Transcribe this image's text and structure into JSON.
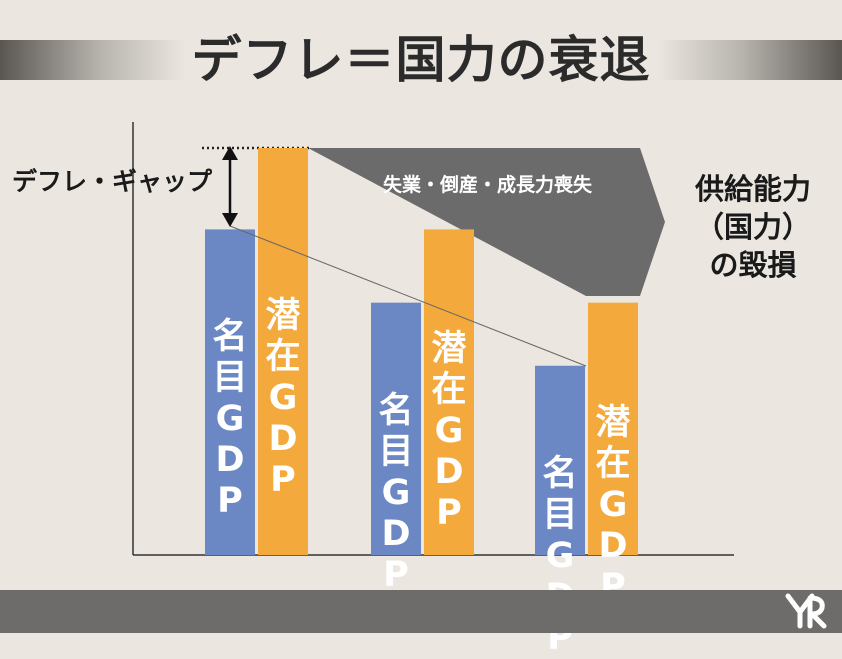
{
  "title": "デフレ＝国力の衰退",
  "gap_label": "デフレ・ギャップ",
  "band_text": "失業・倒産・成長力喪失",
  "side_label": {
    "line1": "供給能力",
    "line2": "（国力）",
    "line3": "の毀損"
  },
  "groups": [
    {
      "nominal": {
        "label": [
          "名",
          "目",
          "G",
          "D",
          "P"
        ],
        "level": 0.8
      },
      "potential": {
        "label": [
          "潜",
          "在",
          "G",
          "D",
          "P"
        ],
        "level": 1.0
      }
    },
    {
      "nominal": {
        "label": [
          "名",
          "目",
          "G",
          "D",
          "P"
        ],
        "level": 0.62
      },
      "potential": {
        "label": [
          "潜",
          "在",
          "G",
          "D",
          "P"
        ],
        "level": 0.8
      }
    },
    {
      "nominal": {
        "label": [
          "名",
          "目",
          "G",
          "D",
          "P"
        ],
        "level": 0.465
      },
      "potential": {
        "label": [
          "潜",
          "在",
          "G",
          "D",
          "P"
        ],
        "level": 0.62
      }
    }
  ],
  "colors": {
    "nominal": "#6b88c4",
    "potential": "#f3a93c",
    "band": "#6b6b6b",
    "footer": "#6e6c6a",
    "background": "#ebe7e0"
  }
}
